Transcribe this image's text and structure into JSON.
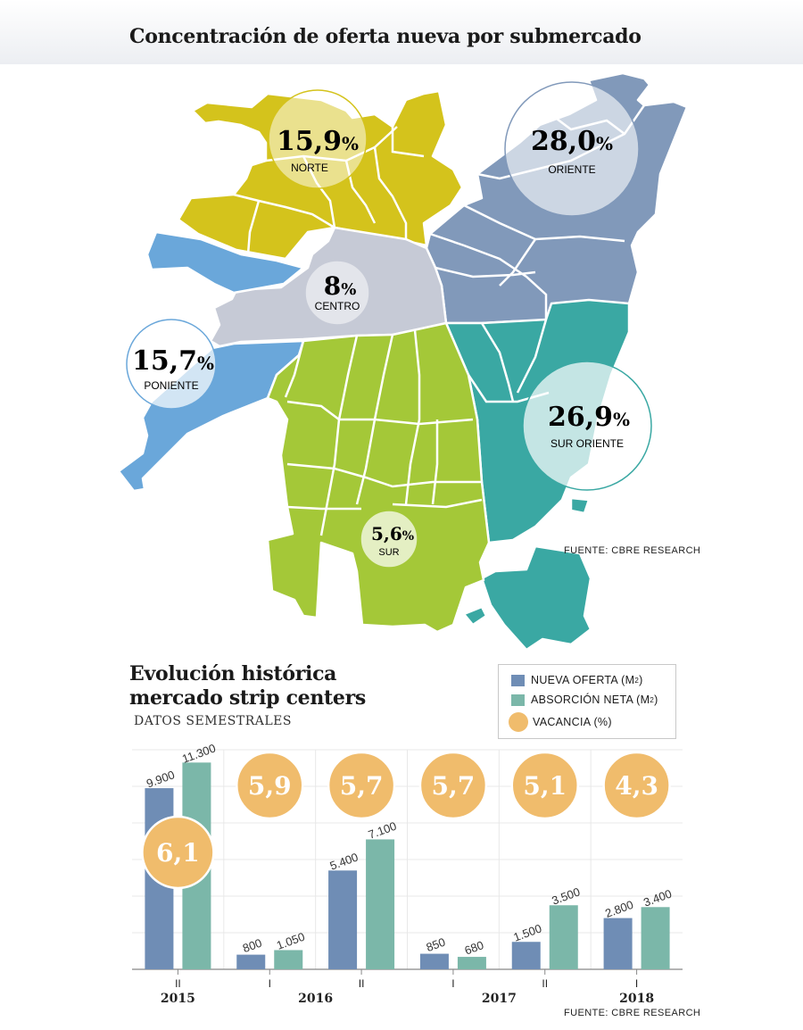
{
  "map": {
    "title": "Concentración de oferta nueva por submercado",
    "source": "FUENTE: CBRE RESEARCH",
    "zones": [
      {
        "id": "norte",
        "pct": "15,9",
        "unit": "%",
        "label": "NORTE",
        "color": "#d4c31c"
      },
      {
        "id": "oriente",
        "pct": "28,0",
        "unit": "%",
        "label": "ORIENTE",
        "color": "#8199ba"
      },
      {
        "id": "centro",
        "pct": "8",
        "unit": "%",
        "label": "CENTRO",
        "color": "#c6cad6"
      },
      {
        "id": "poniente",
        "pct": "15,7",
        "unit": "%",
        "label": "PONIENTE",
        "color": "#6aa7da"
      },
      {
        "id": "sur_oriente",
        "pct": "26,9",
        "unit": "%",
        "label": "SUR ORIENTE",
        "color": "#3aa8a3"
      },
      {
        "id": "sur",
        "pct": "5,6",
        "unit": "%",
        "label": "SUR",
        "color": "#a4c838"
      }
    ]
  },
  "chart": {
    "title_line1": "Evolución histórica",
    "title_line2": "mercado strip centers",
    "subtitle": "DATOS SEMESTRALES",
    "source": "FUENTE: CBRE RESEARCH",
    "legend": {
      "nueva": "NUEVA OFERTA (M",
      "absorcion": "ABSORCIÓN NETA (M",
      "sup": "2",
      "close": ")",
      "vacancia": "VACANCIA (%)"
    },
    "colors": {
      "nueva": "#6f8db5",
      "absorcion": "#7bb7a9",
      "vacancia": "#f0bc6c"
    }
  },
  "chart_data": {
    "type": "bar",
    "categories": [
      "II 2015",
      "I 2016",
      "II 2016",
      "I 2017",
      "II 2017",
      "I 2018"
    ],
    "semesters": [
      "II",
      "I",
      "II",
      "I",
      "II",
      "I"
    ],
    "years": [
      {
        "label": "2015",
        "at": 0
      },
      {
        "label": "2016",
        "at": 1.5
      },
      {
        "label": "2017",
        "at": 3.5
      },
      {
        "label": "2018",
        "at": 5
      }
    ],
    "series": [
      {
        "name": "NUEVA OFERTA (M2)",
        "values": [
          9900,
          800,
          5400,
          850,
          1500,
          2800
        ],
        "labels": [
          "9.900",
          "800",
          "5.400",
          "850",
          "1.500",
          "2.800"
        ]
      },
      {
        "name": "ABSORCIÓN NETA (M2)",
        "values": [
          11300,
          1050,
          7100,
          680,
          3500,
          3400
        ],
        "labels": [
          "11.300",
          "1.050",
          "7.100",
          "680",
          "3.500",
          "3.400"
        ]
      },
      {
        "name": "VACANCIA (%)",
        "values": [
          6.1,
          5.9,
          5.7,
          5.7,
          5.1,
          4.3
        ],
        "labels": [
          "6,1",
          "5,9",
          "5,7",
          "5,7",
          "5,1",
          "4,3"
        ]
      }
    ],
    "ylim": [
      0,
      12000
    ],
    "grid": true
  }
}
